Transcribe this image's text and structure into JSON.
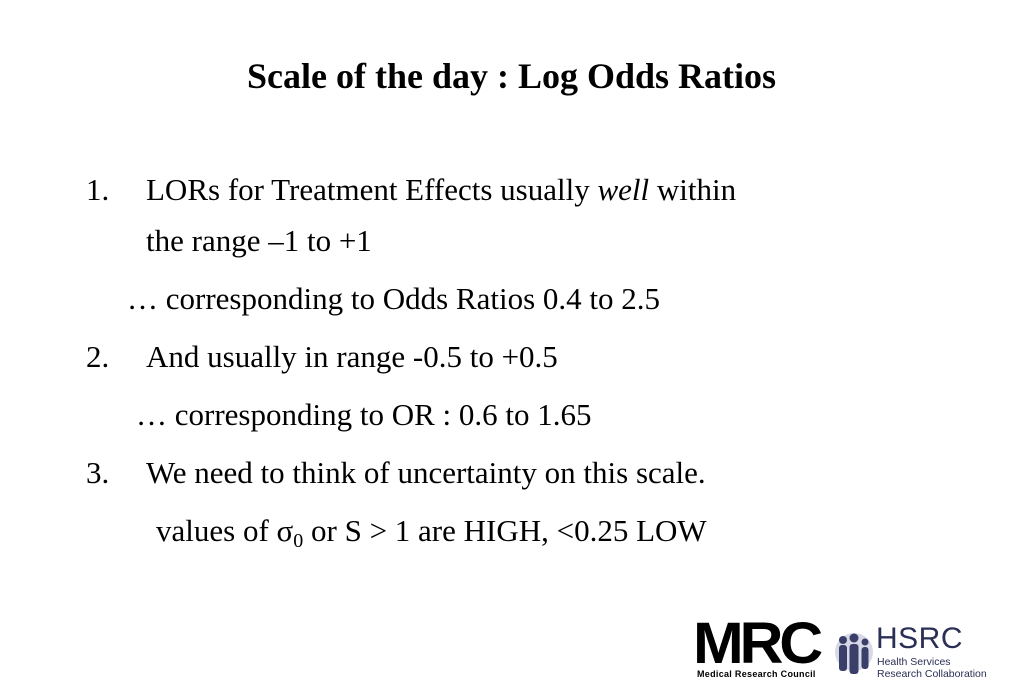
{
  "slide": {
    "title": "Scale of the day : Log Odds Ratios",
    "items": [
      {
        "number": "1.",
        "line1_a": "LORs for Treatment Effects usually ",
        "line1_em": "well",
        "line1_b": " within",
        "line2": "the range –1 to +1"
      },
      {
        "number": "2.",
        "line1": "And usually in range -0.5 to +0.5"
      },
      {
        "number": "3.",
        "line1": "We need to think of uncertainty on this scale."
      }
    ],
    "sub1": "… corresponding to Odds Ratios 0.4 to 2.5",
    "sub2": "… corresponding   to OR :  0.6 to 1.65",
    "sub3": {
      "prefix": "values of ",
      "sigma": "σ",
      "subscript": "0",
      "suffix": " or S > 1 are HIGH, <0.25  LOW"
    }
  },
  "logos": {
    "mrc": "MRC",
    "mrc_sub": "Medical Research Council",
    "hsrc": "HSRC",
    "hsrc_line1": "Health Services",
    "hsrc_line2": "Research Collaboration",
    "hsrc_color": "#2a2f55",
    "hsrc_icon_color": "#3a3f6a"
  }
}
